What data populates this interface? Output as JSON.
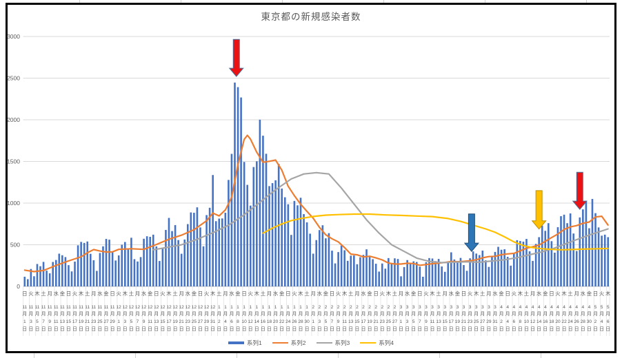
{
  "chart_data": {
    "type": "bar",
    "title": "東京都の新規感染者数",
    "xlabel": "",
    "ylabel": "",
    "ylim": [
      0,
      3000
    ],
    "ytick_step": 500,
    "y_tick_labels": [
      "0",
      "500",
      "1000",
      "1500",
      "2000",
      "2500",
      "3000"
    ],
    "grid": true,
    "unit_month": "月",
    "unit_day": "日",
    "x_tick_labels": [
      "日|11|1",
      "火|11|3",
      "木|11|5",
      "土|11|7",
      "月|11|9",
      "水|11|11",
      "金|11|13",
      "日|11|15",
      "火|11|17",
      "木|11|19",
      "土|11|21",
      "月|11|23",
      "水|11|25",
      "金|11|27",
      "日|11|29",
      "火|12|1",
      "木|12|3",
      "土|12|5",
      "月|12|7",
      "水|12|9",
      "金|12|11",
      "日|12|13",
      "火|12|15",
      "木|12|17",
      "土|12|19",
      "月|12|21",
      "水|12|23",
      "金|12|25",
      "日|12|27",
      "火|12|29",
      "木|12|31",
      "土|1|2",
      "月|1|4",
      "水|1|6",
      "金|1|8",
      "日|1|10",
      "火|1|12",
      "木|1|14",
      "土|1|16",
      "月|1|18",
      "水|1|20",
      "金|1|22",
      "日|1|24",
      "火|1|26",
      "木|1|28",
      "土|1|30",
      "月|2|1",
      "水|2|3",
      "金|2|5",
      "日|2|7",
      "火|2|9",
      "木|2|11",
      "土|2|13",
      "月|2|15",
      "水|2|17",
      "金|2|19",
      "日|2|21",
      "火|2|23",
      "木|2|25",
      "土|2|27",
      "月|3|1",
      "水|3|3",
      "金|3|5",
      "日|3|7",
      "火|3|9",
      "木|3|11",
      "土|3|13",
      "月|3|15",
      "水|3|17",
      "金|3|19",
      "日|3|21",
      "火|3|23",
      "木|3|25",
      "土|3|27",
      "月|3|29",
      "水|3|31",
      "金|4|2",
      "日|4|4",
      "火|4|6",
      "木|4|8",
      "土|4|10",
      "月|4|12",
      "水|4|14",
      "金|4|16",
      "日|4|18",
      "火|4|20",
      "木|4|22",
      "土|4|24",
      "月|4|26",
      "水|4|28",
      "金|4|30",
      "日|5|2",
      "火|5|4",
      "木|5|6"
    ],
    "series": [
      {
        "name": "系列1",
        "type": "bar",
        "color": "#4472C4",
        "values": [
          116,
          87,
          209,
          122,
          269,
          242,
          294,
          189,
          157,
          293,
          317,
          393,
          374,
          352,
          255,
          180,
          298,
          493,
          534,
          522,
          539,
          391,
          314,
          186,
          401,
          481,
          570,
          561,
          418,
          311,
          372,
          500,
          533,
          449,
          584,
          327,
          299,
          352,
          572,
          602,
          595,
          621,
          480,
          305,
          460,
          678,
          822,
          664,
          736,
          556,
          392,
          563,
          748,
          888,
          884,
          949,
          708,
          481,
          856,
          944,
          1337,
          783,
          814,
          816,
          884,
          1278,
          1591,
          2447,
          2392,
          2268,
          1494,
          1219,
          970,
          1433,
          1502,
          2001,
          1809,
          1592,
          1204,
          1240,
          1274,
          1471,
          1175,
          1070,
          986,
          618,
          1026,
          973,
          1064,
          868,
          769,
          633,
          393,
          556,
          676,
          734,
          577,
          639,
          429,
          276,
          412,
          491,
          434,
          307,
          369,
          371,
          266,
          350,
          378,
          445,
          353,
          327,
          272,
          178,
          275,
          213,
          340,
          270,
          337,
          329,
          121,
          232,
          316,
          279,
          301,
          293,
          237,
          116,
          290,
          340,
          335,
          304,
          330,
          239,
          175,
          300,
          409,
          323,
          303,
          342,
          256,
          187,
          337,
          420,
          394,
          376,
          430,
          313,
          234,
          364,
          414,
          475,
          440,
          446,
          355,
          249,
          399,
          555,
          545,
          537,
          570,
          421,
          306,
          510,
          591,
          729,
          667,
          759,
          543,
          405,
          711,
          843,
          861,
          759,
          876,
          635,
          425,
          828,
          925,
          1027,
          698,
          1050,
          879,
          708,
          609,
          621,
          591
        ]
      },
      {
        "name": "系列2",
        "type": "line",
        "color": "#ED7D31",
        "points": [
          [
            0,
            195
          ],
          [
            3,
            178
          ],
          [
            6,
            191
          ],
          [
            10,
            252
          ],
          [
            14,
            306
          ],
          [
            18,
            355
          ],
          [
            20,
            403
          ],
          [
            22,
            442
          ],
          [
            24,
            425
          ],
          [
            26,
            412
          ],
          [
            28,
            415
          ],
          [
            30,
            445
          ],
          [
            34,
            452
          ],
          [
            38,
            445
          ],
          [
            42,
            503
          ],
          [
            46,
            566
          ],
          [
            50,
            615
          ],
          [
            54,
            681
          ],
          [
            58,
            788
          ],
          [
            60,
            880
          ],
          [
            62,
            846
          ],
          [
            64,
            919
          ],
          [
            66,
            1072
          ],
          [
            68,
            1460
          ],
          [
            70,
            1765
          ],
          [
            71,
            1813
          ],
          [
            72,
            1769
          ],
          [
            74,
            1611
          ],
          [
            76,
            1490
          ],
          [
            78,
            1502
          ],
          [
            80,
            1517
          ],
          [
            82,
            1395
          ],
          [
            84,
            1203
          ],
          [
            86,
            1089
          ],
          [
            88,
            987
          ],
          [
            90,
            901
          ],
          [
            92,
            818
          ],
          [
            94,
            708
          ],
          [
            96,
            620
          ],
          [
            98,
            572
          ],
          [
            100,
            535
          ],
          [
            102,
            465
          ],
          [
            104,
            388
          ],
          [
            106,
            379
          ],
          [
            108,
            354
          ],
          [
            110,
            362
          ],
          [
            112,
            342
          ],
          [
            114,
            318
          ],
          [
            116,
            280
          ],
          [
            118,
            269
          ],
          [
            120,
            269
          ],
          [
            122,
            278
          ],
          [
            124,
            274
          ],
          [
            126,
            254
          ],
          [
            128,
            262
          ],
          [
            130,
            273
          ],
          [
            132,
            279
          ],
          [
            134,
            288
          ],
          [
            136,
            299
          ],
          [
            138,
            297
          ],
          [
            140,
            301
          ],
          [
            142,
            308
          ],
          [
            144,
            320
          ],
          [
            146,
            343
          ],
          [
            148,
            358
          ],
          [
            150,
            361
          ],
          [
            152,
            381
          ],
          [
            154,
            390
          ],
          [
            156,
            397
          ],
          [
            158,
            427
          ],
          [
            160,
            459
          ],
          [
            162,
            476
          ],
          [
            164,
            497
          ],
          [
            166,
            542
          ],
          [
            168,
            586
          ],
          [
            170,
            629
          ],
          [
            172,
            684
          ],
          [
            174,
            714
          ],
          [
            176,
            730
          ],
          [
            178,
            758
          ],
          [
            180,
            773
          ],
          [
            182,
            833
          ],
          [
            184,
            842
          ],
          [
            186,
            737
          ]
        ]
      },
      {
        "name": "系列3",
        "type": "line",
        "color": "#A5A5A5",
        "points": [
          [
            41,
            440
          ],
          [
            45,
            465
          ],
          [
            50,
            500
          ],
          [
            55,
            565
          ],
          [
            60,
            645
          ],
          [
            65,
            735
          ],
          [
            70,
            860
          ],
          [
            75,
            1010
          ],
          [
            80,
            1160
          ],
          [
            85,
            1290
          ],
          [
            89,
            1350
          ],
          [
            93,
            1365
          ],
          [
            97,
            1350
          ],
          [
            101,
            1180
          ],
          [
            105,
            990
          ],
          [
            109,
            800
          ],
          [
            113,
            640
          ],
          [
            117,
            500
          ],
          [
            121,
            420
          ],
          [
            125,
            340
          ],
          [
            129,
            300
          ],
          [
            133,
            285
          ],
          [
            137,
            290
          ],
          [
            141,
            295
          ],
          [
            145,
            290
          ],
          [
            149,
            305
          ],
          [
            153,
            320
          ],
          [
            157,
            345
          ],
          [
            161,
            380
          ],
          [
            165,
            415
          ],
          [
            169,
            460
          ],
          [
            173,
            520
          ],
          [
            177,
            575
          ],
          [
            181,
            630
          ],
          [
            184,
            665
          ],
          [
            186,
            690
          ]
        ]
      },
      {
        "name": "系列4",
        "type": "line",
        "color": "#FFC000",
        "points": [
          [
            76,
            640
          ],
          [
            79,
            700
          ],
          [
            82,
            750
          ],
          [
            85,
            790
          ],
          [
            88,
            815
          ],
          [
            92,
            840
          ],
          [
            96,
            855
          ],
          [
            100,
            862
          ],
          [
            105,
            868
          ],
          [
            110,
            868
          ],
          [
            115,
            858
          ],
          [
            120,
            852
          ],
          [
            125,
            845
          ],
          [
            130,
            838
          ],
          [
            135,
            815
          ],
          [
            139,
            780
          ],
          [
            143,
            735
          ],
          [
            147,
            690
          ],
          [
            150,
            650
          ],
          [
            153,
            595
          ],
          [
            156,
            535
          ],
          [
            159,
            490
          ],
          [
            162,
            465
          ],
          [
            165,
            452
          ],
          [
            168,
            445
          ],
          [
            171,
            440
          ],
          [
            174,
            442
          ],
          [
            177,
            446
          ],
          [
            180,
            450
          ],
          [
            183,
            452
          ],
          [
            186,
            455
          ]
        ]
      }
    ],
    "annotations": [
      {
        "shape": "down-arrow",
        "fill": "#EE1111",
        "stroke": "#41719C",
        "day": 68,
        "value_top": 2965,
        "value_tip": 2520
      },
      {
        "shape": "down-arrow",
        "fill": "#2E75B6",
        "stroke": "#1F4E79",
        "day": 143,
        "value_top": 870,
        "value_tip": 420
      },
      {
        "shape": "down-arrow",
        "fill": "#FFC000",
        "stroke": "#BF9000",
        "day": 164.5,
        "value_top": 1150,
        "value_tip": 688
      },
      {
        "shape": "down-arrow",
        "fill": "#EE1111",
        "stroke": "#41719C",
        "day": 177.5,
        "value_top": 1370,
        "value_tip": 925
      }
    ],
    "legend": {
      "position": "bottom",
      "labels": [
        "系列1",
        "系列2",
        "系列3",
        "系列4"
      ]
    }
  }
}
